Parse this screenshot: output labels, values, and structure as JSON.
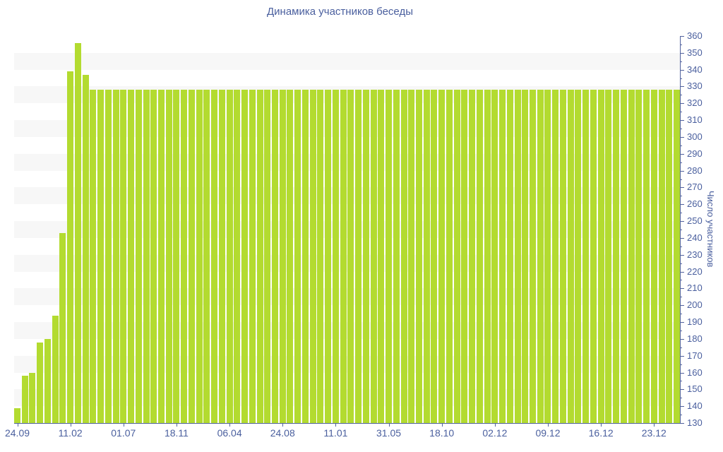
{
  "chart_data": {
    "type": "bar",
    "title": "Динамика участников беседы",
    "ylabel": "Число участников",
    "xlabel": "",
    "ylim": [
      130,
      360
    ],
    "y_major_tick_step": 10,
    "y_minor_tick_step": 5,
    "legend_position": "none",
    "grid": "alternating-horizontal-stripes",
    "x_labels": [
      "24.09",
      "11.02",
      "01.07",
      "18.11",
      "06.04",
      "24.08",
      "11.01",
      "31.05",
      "18.10",
      "02.12",
      "09.12",
      "16.12",
      "23.12"
    ],
    "x_label_every_n_bars": 7,
    "values": [
      139,
      158,
      160,
      178,
      180,
      194,
      243,
      339,
      356,
      337,
      328,
      328,
      328,
      328,
      328,
      328,
      328,
      328,
      328,
      328,
      328,
      328,
      328,
      328,
      328,
      328,
      328,
      328,
      328,
      328,
      328,
      328,
      328,
      328,
      328,
      328,
      328,
      328,
      328,
      328,
      328,
      328,
      328,
      328,
      328,
      328,
      328,
      328,
      328,
      328,
      328,
      328,
      328,
      328,
      328,
      328,
      328,
      328,
      328,
      328,
      328,
      328,
      328,
      328,
      328,
      328,
      328,
      328,
      328,
      328,
      328,
      328,
      328,
      328,
      328,
      328,
      328,
      328,
      328,
      328,
      328,
      328,
      328,
      328,
      328,
      328,
      328,
      328
    ],
    "colors": {
      "bar": "#b3db30",
      "axis": "#51629e",
      "text": "#4a5f9e",
      "stripe": "#f7f7f7",
      "background": "#ffffff"
    }
  }
}
